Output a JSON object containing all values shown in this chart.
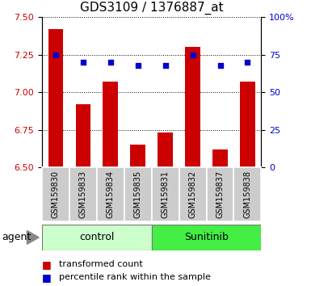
{
  "title": "GDS3109 / 1376887_at",
  "samples": [
    "GSM159830",
    "GSM159833",
    "GSM159834",
    "GSM159835",
    "GSM159831",
    "GSM159832",
    "GSM159837",
    "GSM159838"
  ],
  "transformed_count": [
    7.42,
    6.92,
    7.07,
    6.65,
    6.73,
    7.3,
    6.62,
    7.07
  ],
  "percentile_rank": [
    75,
    70,
    70,
    68,
    68,
    75,
    68,
    70
  ],
  "ylim_left": [
    6.5,
    7.5
  ],
  "ylim_right": [
    0,
    100
  ],
  "yticks_left": [
    6.5,
    6.75,
    7.0,
    7.25,
    7.5
  ],
  "yticks_right": [
    0,
    25,
    50,
    75,
    100
  ],
  "bar_color": "#cc0000",
  "dot_color": "#0000cc",
  "bar_width": 0.55,
  "control_label": "control",
  "sunitinib_label": "Sunitinib",
  "agent_label": "agent",
  "legend_bar_label": "transformed count",
  "legend_dot_label": "percentile rank within the sample",
  "left_tick_color": "#cc0000",
  "right_tick_color": "#0000cc",
  "control_bg": "#ccffcc",
  "sunitinib_bg": "#44ee44",
  "sample_bg": "#cccccc",
  "title_fontsize": 11,
  "tick_fontsize": 8,
  "sample_fontsize": 7,
  "agent_fontsize": 9,
  "legend_fontsize": 8
}
